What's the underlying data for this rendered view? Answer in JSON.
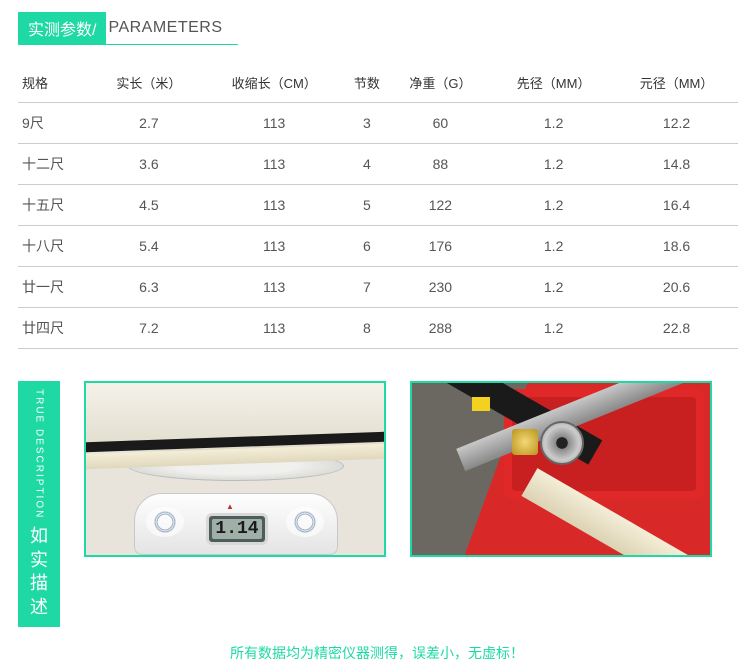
{
  "colors": {
    "accent": "#1ed9a4",
    "text": "#555",
    "border": "#cccccc"
  },
  "header": {
    "title_cn": "实测参数/",
    "title_en": "PARAMETERS"
  },
  "table": {
    "columns": [
      "规格",
      "实长（米）",
      "收缩长（CM）",
      "节数",
      "净重（G）",
      "先径（MM）",
      "元径（MM）"
    ],
    "rows": [
      [
        "9尺",
        "2.7",
        "113",
        "3",
        "60",
        "1.2",
        "12.2"
      ],
      [
        "十二尺",
        "3.6",
        "113",
        "4",
        "88",
        "1.2",
        "14.8"
      ],
      [
        "十五尺",
        "4.5",
        "113",
        "5",
        "122",
        "1.2",
        "16.4"
      ],
      [
        "十八尺",
        "5.4",
        "113",
        "6",
        "176",
        "1.2",
        "18.6"
      ],
      [
        "廿一尺",
        "6.3",
        "113",
        "7",
        "230",
        "1.2",
        "20.6"
      ],
      [
        "廿四尺",
        "7.2",
        "113",
        "8",
        "288",
        "1.2",
        "22.8"
      ]
    ]
  },
  "side_label": {
    "en": "TRUE DESCRIPTION",
    "cn1": "如",
    "cn2": "实",
    "cn3": "描",
    "cn4": "述"
  },
  "photos": {
    "scale_lcd": "1.14"
  },
  "footer": "所有数据均为精密仪器测得，误差小，无虚标！"
}
